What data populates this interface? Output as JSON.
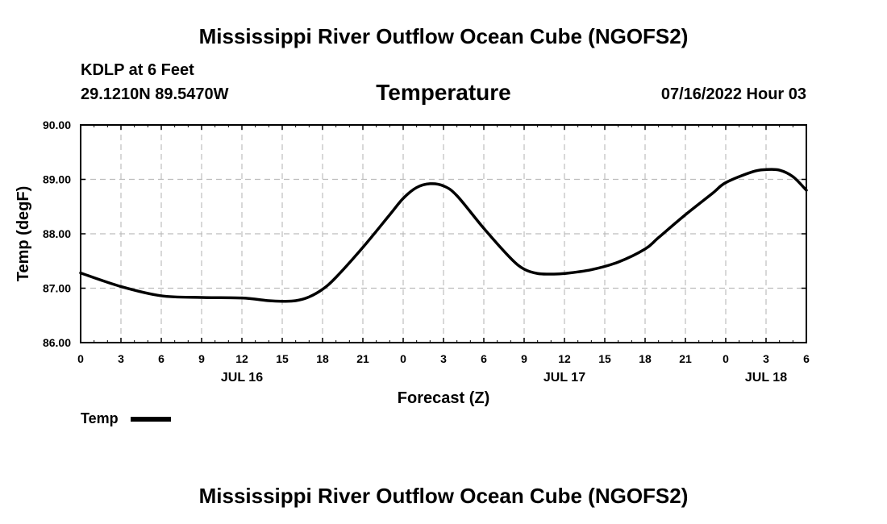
{
  "header": {
    "title": "Mississippi River Outflow Ocean Cube (NGOFS2)",
    "station": "KDLP at 6 Feet",
    "coords": "29.1210N  89.5470W",
    "datetime": "07/16/2022 Hour 03"
  },
  "footer": {
    "title": "Mississippi River Outflow Ocean Cube (NGOFS2)"
  },
  "chart_data": {
    "type": "line",
    "title": "Temperature",
    "xlabel": "Forecast (Z)",
    "ylabel": "Temp (degF)",
    "ylim": [
      86,
      90
    ],
    "xlim": [
      0,
      54
    ],
    "yticks": [
      "86.00",
      "87.00",
      "88.00",
      "89.00",
      "90.00"
    ],
    "xtick_labels": [
      "0",
      "3",
      "6",
      "9",
      "12",
      "15",
      "18",
      "21",
      "0",
      "3",
      "6",
      "9",
      "12",
      "15",
      "18",
      "21",
      "0",
      "3",
      "6"
    ],
    "day_labels": [
      {
        "label": "JUL 16",
        "hour": 12
      },
      {
        "label": "JUL 17",
        "hour": 36
      },
      {
        "label": "JUL 18",
        "hour": 51
      }
    ],
    "grid": true,
    "legend": {
      "label": "Temp",
      "placement": "bottom-left"
    },
    "series": [
      {
        "name": "Temp",
        "x": [
          0,
          3,
          6,
          9,
          12,
          14,
          15,
          16,
          17,
          18,
          19,
          21,
          23,
          24,
          25,
          26,
          27,
          28,
          30,
          32,
          33,
          34,
          35,
          36,
          38,
          40,
          42,
          43,
          45,
          47,
          48,
          50,
          51,
          52,
          53,
          54
        ],
        "values": [
          87.28,
          87.03,
          86.86,
          86.83,
          86.82,
          86.77,
          86.76,
          86.77,
          86.84,
          86.98,
          87.2,
          87.75,
          88.35,
          88.65,
          88.85,
          88.92,
          88.88,
          88.7,
          88.1,
          87.55,
          87.35,
          87.27,
          87.26,
          87.27,
          87.34,
          87.48,
          87.72,
          87.93,
          88.35,
          88.74,
          88.94,
          89.14,
          89.18,
          89.17,
          89.05,
          88.8
        ]
      }
    ]
  }
}
